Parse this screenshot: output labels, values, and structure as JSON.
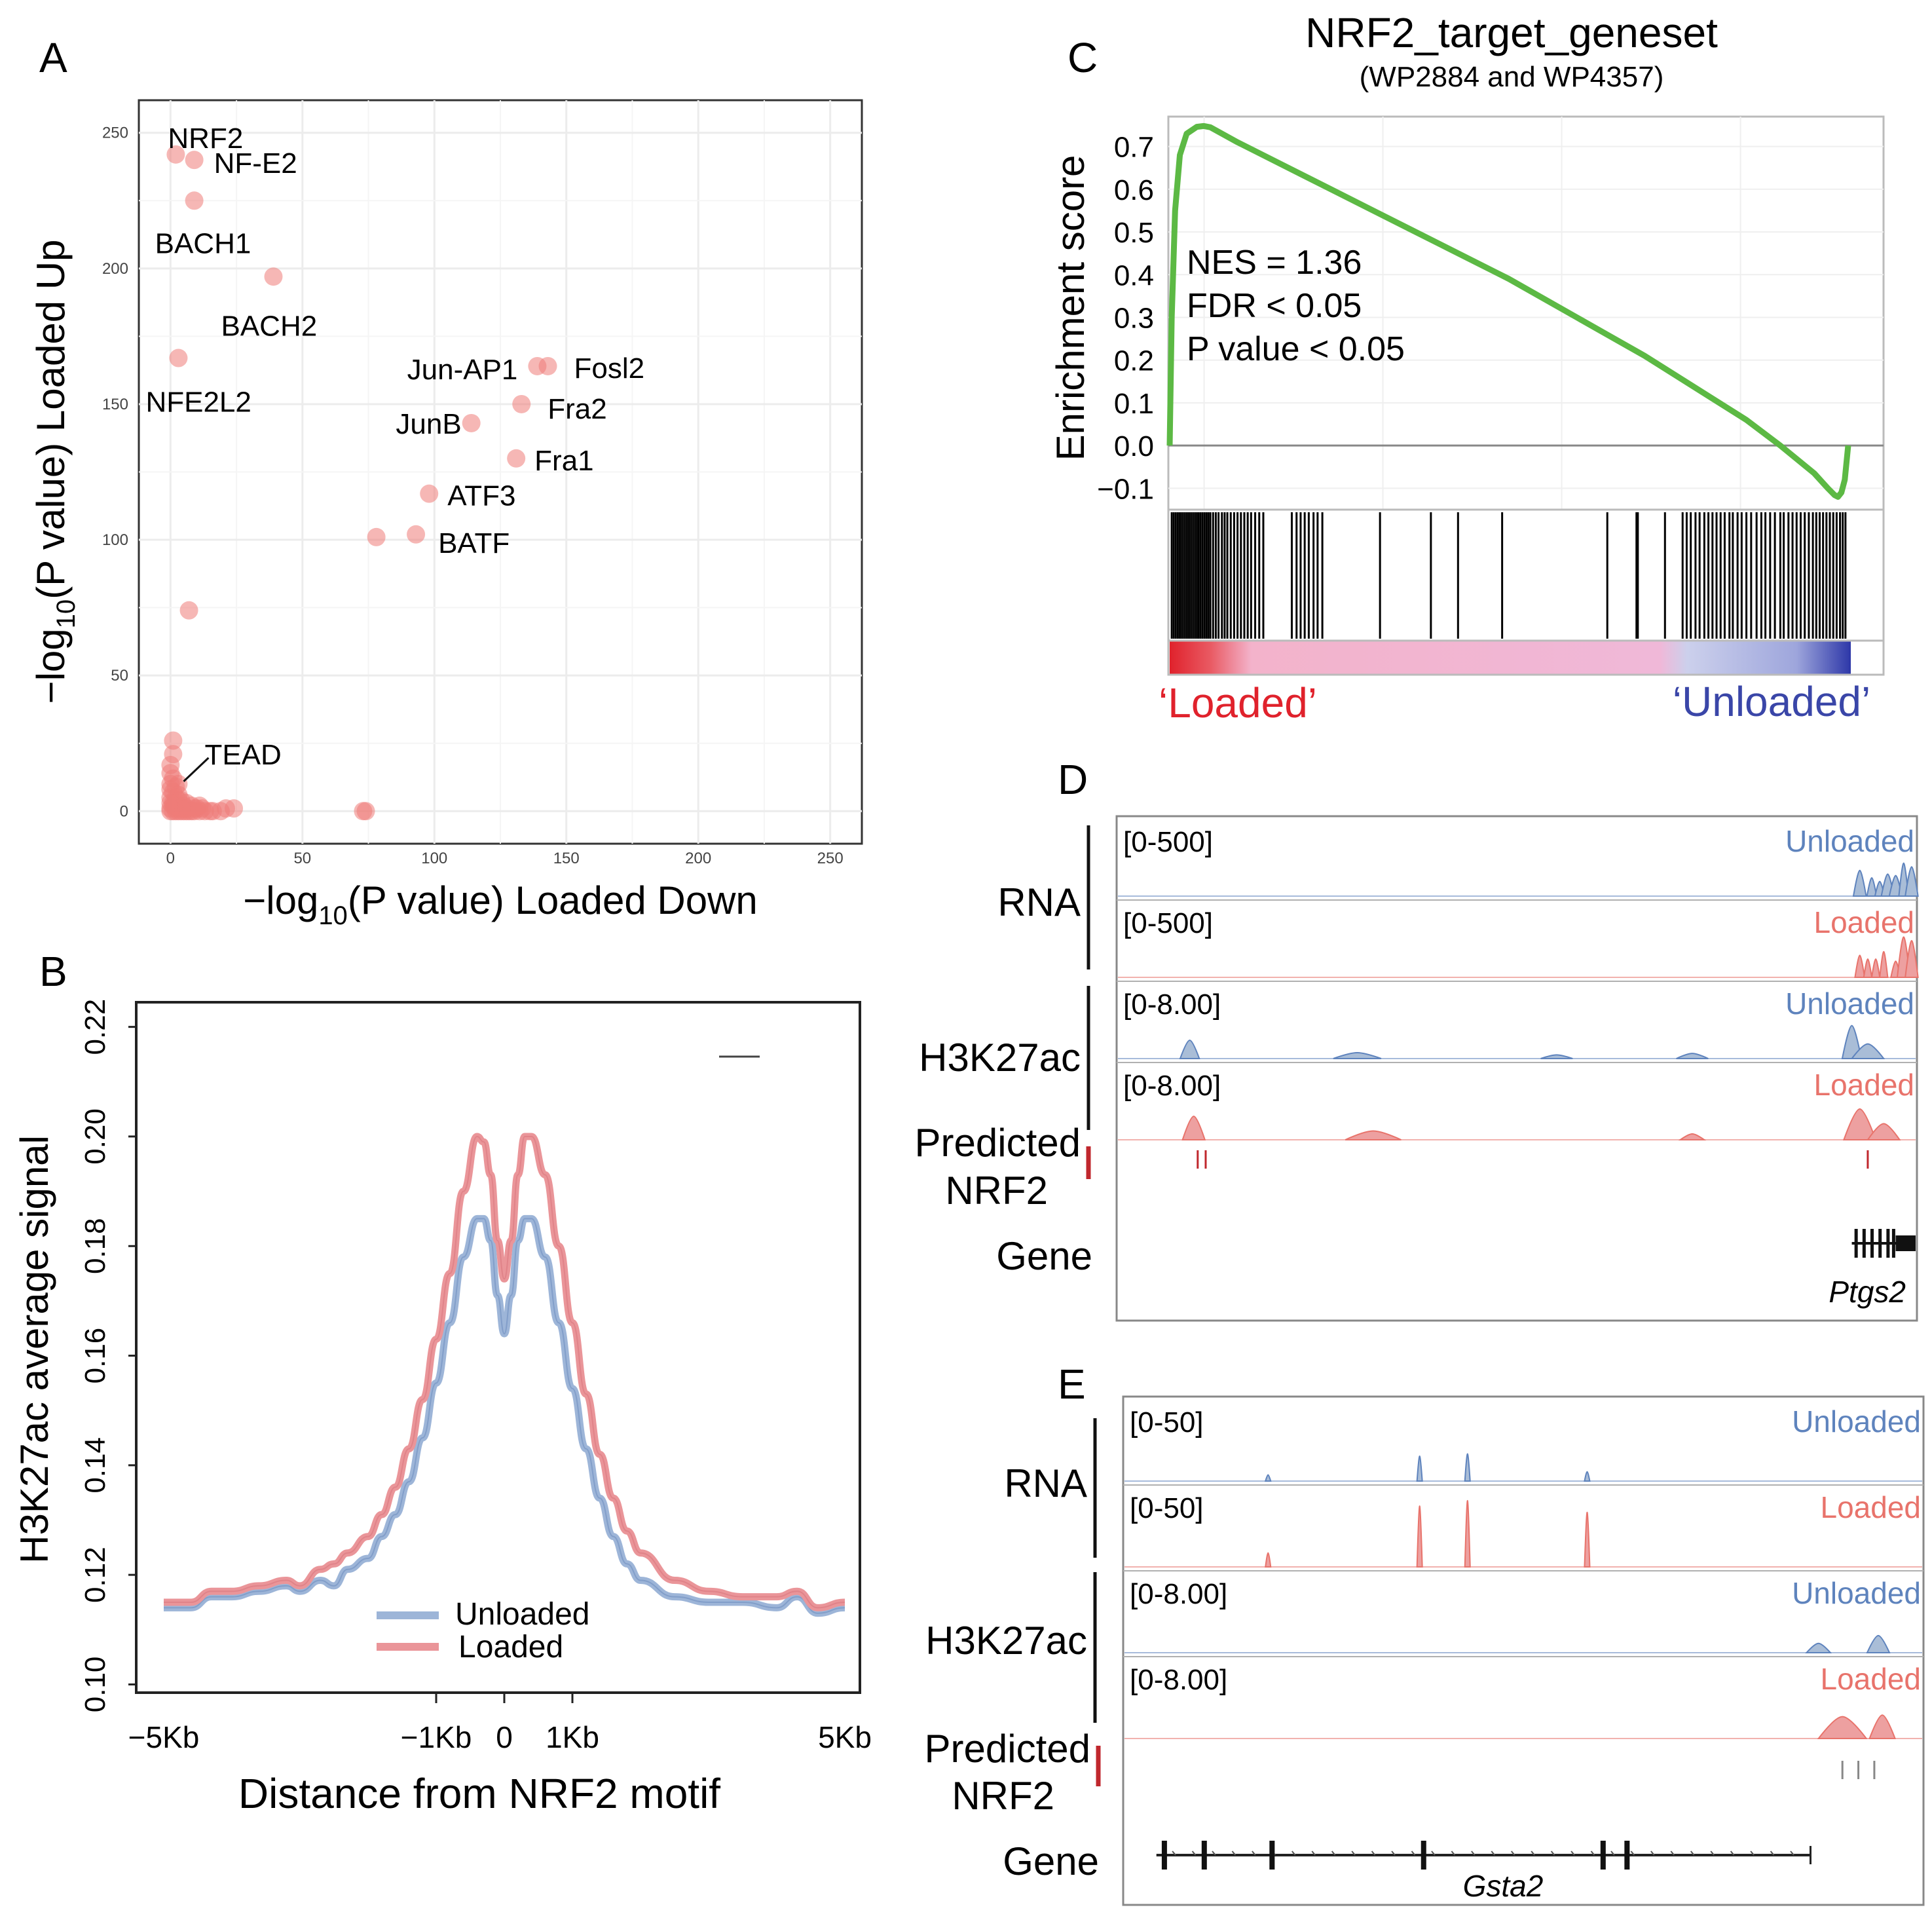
{
  "panels": {
    "A": {
      "letter": "A",
      "chart_data": {
        "type": "scatter",
        "xlabel_pre": "−log",
        "xlabel_sub": "10",
        "xlabel_post": "(P value) Loaded Down",
        "ylabel_pre": "−log",
        "ylabel_sub": "10",
        "ylabel_post": "(P value) Loaded Up",
        "xlim": [
          -12,
          262
        ],
        "ylim": [
          -12,
          262
        ],
        "xticks": [
          "0",
          "50",
          "100",
          "150",
          "200",
          "250"
        ],
        "yticks": [
          "0",
          "50",
          "100",
          "150",
          "200",
          "250"
        ],
        "labeled_points": [
          {
            "label": "NRF2",
            "x": 2,
            "y": 242,
            "anchor": "start",
            "dx": -12,
            "dy": -10
          },
          {
            "label": "NF-E2",
            "x": 9,
            "y": 240,
            "anchor": "start",
            "dx": 30,
            "dy": 20
          },
          {
            "label": "BACH1",
            "x": 9,
            "y": 225,
            "anchor": "start",
            "dx": -60,
            "dy": 80
          },
          {
            "label": "BACH2",
            "x": 39,
            "y": 197,
            "anchor": "start",
            "dx": -80,
            "dy": 90
          },
          {
            "label": "NFE2L2",
            "x": 3,
            "y": 167,
            "anchor": "start",
            "dx": -50,
            "dy": 82
          },
          {
            "label": "Jun-AP1",
            "x": 139,
            "y": 164,
            "anchor": "end",
            "dx": -30,
            "dy": 20
          },
          {
            "label": "Fosl2",
            "x": 143,
            "y": 164,
            "anchor": "start",
            "dx": 40,
            "dy": 18
          },
          {
            "label": "Fra2",
            "x": 133,
            "y": 150,
            "anchor": "start",
            "dx": 40,
            "dy": 22
          },
          {
            "label": "JunB",
            "x": 114,
            "y": 143,
            "anchor": "end",
            "dx": -15,
            "dy": 16
          },
          {
            "label": "Fra1",
            "x": 131,
            "y": 130,
            "anchor": "start",
            "dx": 28,
            "dy": 18
          },
          {
            "label": "ATF3",
            "x": 98,
            "y": 117,
            "anchor": "start",
            "dx": 28,
            "dy": 18
          },
          {
            "label": "BATF",
            "x": 93,
            "y": 102,
            "anchor": "start",
            "dx": 34,
            "dy": 28
          },
          {
            "label": "TEAD",
            "x": 3,
            "y": 10,
            "anchor": "start",
            "dx": 40,
            "dy": -30
          }
        ],
        "points": [
          [
            78,
            101
          ],
          [
            7,
            74
          ],
          [
            1,
            26
          ],
          [
            1,
            21
          ],
          [
            0,
            17
          ],
          [
            0,
            14
          ],
          [
            1,
            12
          ],
          [
            0,
            10
          ],
          [
            2,
            9
          ],
          [
            0,
            8
          ],
          [
            1,
            7
          ],
          [
            3,
            6
          ],
          [
            0,
            5
          ],
          [
            2,
            5
          ],
          [
            4,
            4
          ],
          [
            1,
            3
          ],
          [
            6,
            3
          ],
          [
            3,
            2
          ],
          [
            8,
            2
          ],
          [
            0,
            1
          ],
          [
            2,
            1
          ],
          [
            5,
            1
          ],
          [
            10,
            1
          ],
          [
            12,
            1
          ],
          [
            1,
            0
          ],
          [
            3,
            0
          ],
          [
            5,
            0
          ],
          [
            7,
            0
          ],
          [
            9,
            0
          ],
          [
            11,
            0
          ],
          [
            13,
            0
          ],
          [
            15,
            0
          ],
          [
            19,
            0
          ],
          [
            21,
            1
          ],
          [
            24,
            1
          ],
          [
            16,
            0
          ],
          [
            0,
            0
          ],
          [
            2,
            0
          ],
          [
            4,
            0
          ],
          [
            6,
            0
          ],
          [
            8,
            0
          ],
          [
            73,
            0
          ],
          [
            74,
            0
          ],
          [
            1,
            2
          ],
          [
            3,
            4
          ],
          [
            5,
            2
          ],
          [
            2,
            3
          ],
          [
            0,
            3
          ],
          [
            4,
            1
          ],
          [
            6,
            1
          ],
          [
            9,
            1
          ],
          [
            11,
            2
          ]
        ]
      }
    },
    "B": {
      "letter": "B",
      "chart_data": {
        "type": "line",
        "xlabel": "Distance from NRF2 motif",
        "ylabel": "H3K27ac average signal",
        "xlim": [
          -5,
          5
        ],
        "ylim": [
          0.0985,
          0.2245
        ],
        "xtick_labels": [
          {
            "x": -5,
            "label": "−5Kb"
          },
          {
            "x": -1,
            "label": "−1Kb"
          },
          {
            "x": 0,
            "label": "0"
          },
          {
            "x": 1,
            "label": "1Kb"
          },
          {
            "x": 5,
            "label": "5Kb"
          }
        ],
        "yticks": [
          "0.10",
          "0.12",
          "0.14",
          "0.16",
          "0.18",
          "0.20",
          "0.22"
        ],
        "legend": [
          "Unloaded",
          "Loaded"
        ],
        "series": [
          {
            "name": "Unloaded",
            "color": "#9db5d8",
            "x": [
              -5,
              -4.6,
              -4.3,
              -4.0,
              -3.6,
              -3.2,
              -3.0,
              -2.7,
              -2.5,
              -2.3,
              -2.0,
              -1.8,
              -1.6,
              -1.4,
              -1.2,
              -1.0,
              -0.8,
              -0.6,
              -0.4,
              -0.3,
              -0.2,
              -0.1,
              0,
              0.1,
              0.2,
              0.3,
              0.4,
              0.6,
              0.8,
              1.0,
              1.2,
              1.4,
              1.6,
              1.8,
              2.0,
              2.5,
              3.0,
              3.5,
              4.0,
              4.3,
              4.6,
              5
            ],
            "y": [
              0.114,
              0.114,
              0.116,
              0.116,
              0.117,
              0.118,
              0.117,
              0.119,
              0.118,
              0.121,
              0.123,
              0.127,
              0.131,
              0.137,
              0.145,
              0.155,
              0.166,
              0.178,
              0.185,
              0.185,
              0.181,
              0.171,
              0.164,
              0.171,
              0.181,
              0.185,
              0.185,
              0.178,
              0.166,
              0.154,
              0.143,
              0.134,
              0.127,
              0.122,
              0.119,
              0.116,
              0.115,
              0.115,
              0.114,
              0.116,
              0.113,
              0.114
            ]
          },
          {
            "name": "Loaded",
            "color": "#ea9599",
            "x": [
              -5,
              -4.6,
              -4.3,
              -4.0,
              -3.6,
              -3.2,
              -3.0,
              -2.7,
              -2.5,
              -2.3,
              -2.0,
              -1.8,
              -1.6,
              -1.4,
              -1.2,
              -1.0,
              -0.8,
              -0.6,
              -0.4,
              -0.3,
              -0.2,
              -0.1,
              0,
              0.1,
              0.2,
              0.3,
              0.4,
              0.6,
              0.8,
              1.0,
              1.2,
              1.4,
              1.6,
              1.8,
              2.0,
              2.5,
              3.0,
              3.5,
              4.0,
              4.3,
              4.6,
              5
            ],
            "y": [
              0.115,
              0.115,
              0.117,
              0.117,
              0.118,
              0.119,
              0.118,
              0.121,
              0.122,
              0.124,
              0.127,
              0.131,
              0.136,
              0.143,
              0.152,
              0.163,
              0.175,
              0.19,
              0.2,
              0.199,
              0.193,
              0.181,
              0.174,
              0.181,
              0.193,
              0.2,
              0.2,
              0.193,
              0.18,
              0.166,
              0.153,
              0.142,
              0.134,
              0.128,
              0.124,
              0.119,
              0.117,
              0.116,
              0.116,
              0.117,
              0.114,
              0.115
            ]
          }
        ]
      }
    },
    "C": {
      "letter": "C",
      "title": "NRF2_target_geneset",
      "subtitle": "(WP2884 and WP4357)",
      "stats": [
        "NES = 1.36",
        "FDR < 0.05",
        "P value < 0.05"
      ],
      "loaded_label": "‘Loaded’",
      "unloaded_label": "‘Unloaded’",
      "chart_data": {
        "type": "line",
        "ylabel": "Enrichment score",
        "ylim": [
          -0.15,
          0.77
        ],
        "yticks": [
          "−0.1",
          "0.0",
          "0.1",
          "0.2",
          "0.3",
          "0.4",
          "0.5",
          "0.6",
          "0.7"
        ],
        "xlim": [
          0,
          1
        ],
        "series": [
          {
            "name": "Enrichment score",
            "color": "#5cb944",
            "x": [
              0,
              0.003,
              0.008,
              0.015,
              0.025,
              0.04,
              0.05,
              0.06,
              0.1,
              0.2,
              0.3,
              0.4,
              0.5,
              0.6,
              0.7,
              0.8,
              0.85,
              0.9,
              0.95,
              0.97,
              0.98,
              0.985,
              0.99,
              0.995,
              1
            ],
            "y": [
              0.0,
              0.3,
              0.55,
              0.68,
              0.73,
              0.746,
              0.748,
              0.745,
              0.71,
              0.63,
              0.55,
              0.47,
              0.39,
              0.3,
              0.21,
              0.11,
              0.06,
              0.0,
              -0.065,
              -0.1,
              -0.116,
              -0.12,
              -0.11,
              -0.08,
              0.0
            ]
          }
        ],
        "hits": [
          0.003,
          0.006,
          0.009,
          0.012,
          0.015,
          0.018,
          0.021,
          0.024,
          0.027,
          0.03,
          0.033,
          0.036,
          0.039,
          0.042,
          0.045,
          0.048,
          0.051,
          0.054,
          0.057,
          0.06,
          0.064,
          0.068,
          0.072,
          0.077,
          0.081,
          0.085,
          0.09,
          0.095,
          0.1,
          0.105,
          0.11,
          0.115,
          0.12,
          0.126,
          0.132,
          0.138,
          0.18,
          0.187,
          0.193,
          0.199,
          0.205,
          0.212,
          0.218,
          0.225,
          0.31,
          0.385,
          0.425,
          0.49,
          0.645,
          0.688,
          0.69,
          0.73,
          0.756,
          0.762,
          0.768,
          0.775,
          0.781,
          0.788,
          0.794,
          0.8,
          0.806,
          0.812,
          0.818,
          0.825,
          0.83,
          0.837,
          0.843,
          0.85,
          0.857,
          0.865,
          0.872,
          0.878,
          0.885,
          0.892,
          0.9,
          0.905,
          0.912,
          0.918,
          0.924,
          0.93,
          0.936,
          0.942,
          0.948,
          0.953,
          0.958,
          0.963,
          0.968,
          0.973,
          0.978,
          0.983,
          0.988,
          0.992,
          0.996
        ]
      }
    },
    "D": {
      "letter": "D",
      "group_labels": [
        "RNA",
        "H3K27ac",
        "Predicted",
        "NRF2",
        "Gene"
      ],
      "gene_name": "Ptgs2",
      "tracks": [
        {
          "range": "[0-500]",
          "label": "Unloaded",
          "color": "#5e83bd",
          "fill": "#a9bdd7",
          "peaks": [
            [
              0.93,
              0.35,
              0.008
            ],
            [
              0.945,
              0.25,
              0.006
            ],
            [
              0.955,
              0.2,
              0.006
            ],
            [
              0.965,
              0.3,
              0.008
            ],
            [
              0.975,
              0.28,
              0.008
            ],
            [
              0.985,
              0.45,
              0.006
            ],
            [
              0.995,
              0.4,
              0.008
            ]
          ]
        },
        {
          "range": "[0-500]",
          "label": "Loaded",
          "color": "#e8736b",
          "fill": "#eda0a0",
          "peaks": [
            [
              0.93,
              0.3,
              0.006
            ],
            [
              0.94,
              0.25,
              0.005
            ],
            [
              0.95,
              0.25,
              0.005
            ],
            [
              0.96,
              0.35,
              0.005
            ],
            [
              0.975,
              0.22,
              0.006
            ],
            [
              0.985,
              0.55,
              0.008
            ],
            [
              0.995,
              0.5,
              0.008
            ]
          ]
        },
        {
          "range": "[0-8.00]",
          "label": "Unloaded",
          "color": "#5e83bd",
          "fill": "#a9bdd7",
          "peaks": [
            [
              0.09,
              0.25,
              0.012
            ],
            [
              0.3,
              0.08,
              0.03
            ],
            [
              0.55,
              0.05,
              0.02
            ],
            [
              0.72,
              0.07,
              0.02
            ],
            [
              0.92,
              0.45,
              0.012
            ],
            [
              0.94,
              0.2,
              0.02
            ]
          ]
        },
        {
          "range": "[0-8.00]",
          "label": "Loaded",
          "color": "#e8736b",
          "fill": "#eda0a0",
          "peaks": [
            [
              0.095,
              0.32,
              0.014
            ],
            [
              0.32,
              0.12,
              0.035
            ],
            [
              0.72,
              0.08,
              0.015
            ],
            [
              0.93,
              0.42,
              0.02
            ],
            [
              0.96,
              0.22,
              0.02
            ]
          ]
        }
      ],
      "motif_positions": [
        0.1,
        0.11,
        0.94
      ]
    },
    "E": {
      "letter": "E",
      "group_labels": [
        "RNA",
        "H3K27ac",
        "Predicted",
        "NRF2",
        "Gene"
      ],
      "gene_name": "Gsta2",
      "tracks": [
        {
          "range": "[0-50]",
          "label": "Unloaded",
          "color": "#5e83bd",
          "fill": "#a9bdd7",
          "peaks": [
            [
              0.18,
              0.08,
              0.002
            ],
            [
              0.37,
              0.32,
              0.002
            ],
            [
              0.43,
              0.35,
              0.002
            ],
            [
              0.58,
              0.12,
              0.002
            ]
          ]
        },
        {
          "range": "[0-50]",
          "label": "Loaded",
          "color": "#e8736b",
          "fill": "#eda0a0",
          "peaks": [
            [
              0.18,
              0.18,
              0.002
            ],
            [
              0.37,
              0.78,
              0.003
            ],
            [
              0.43,
              0.85,
              0.003
            ],
            [
              0.58,
              0.7,
              0.003
            ]
          ]
        },
        {
          "range": "[0-8.00]",
          "label": "Unloaded",
          "color": "#5e83bd",
          "fill": "#a9bdd7",
          "peaks": [
            [
              0.87,
              0.12,
              0.015
            ],
            [
              0.945,
              0.22,
              0.014
            ]
          ]
        },
        {
          "range": "[0-8.00]",
          "label": "Loaded",
          "color": "#e8736b",
          "fill": "#eda0a0",
          "peaks": [
            [
              0.9,
              0.28,
              0.03
            ],
            [
              0.95,
              0.3,
              0.016
            ]
          ]
        }
      ],
      "motif_positions": [
        0.9,
        0.92,
        0.94
      ],
      "exons": [
        0.05,
        0.1,
        0.185,
        0.375,
        0.6,
        0.63
      ]
    }
  }
}
